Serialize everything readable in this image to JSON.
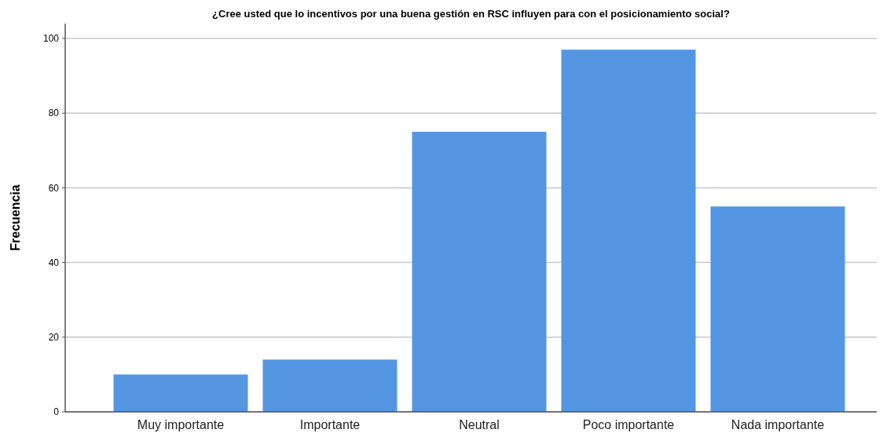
{
  "chart_data": {
    "type": "bar",
    "title": "¿Cree usted que lo incentivos por una buena gestión en RSC influyen para con el posicionamiento social?",
    "ylabel": "Frecuencia",
    "categories": [
      "Muy importante",
      "Importante",
      "Neutral",
      "Poco importante",
      "Nada importante"
    ],
    "values": [
      10,
      14,
      75,
      97,
      55
    ],
    "color": "#5596e3",
    "ylim": [
      0,
      104
    ],
    "yticks": [
      0,
      20,
      40,
      60,
      80,
      100
    ],
    "grid": "y"
  }
}
